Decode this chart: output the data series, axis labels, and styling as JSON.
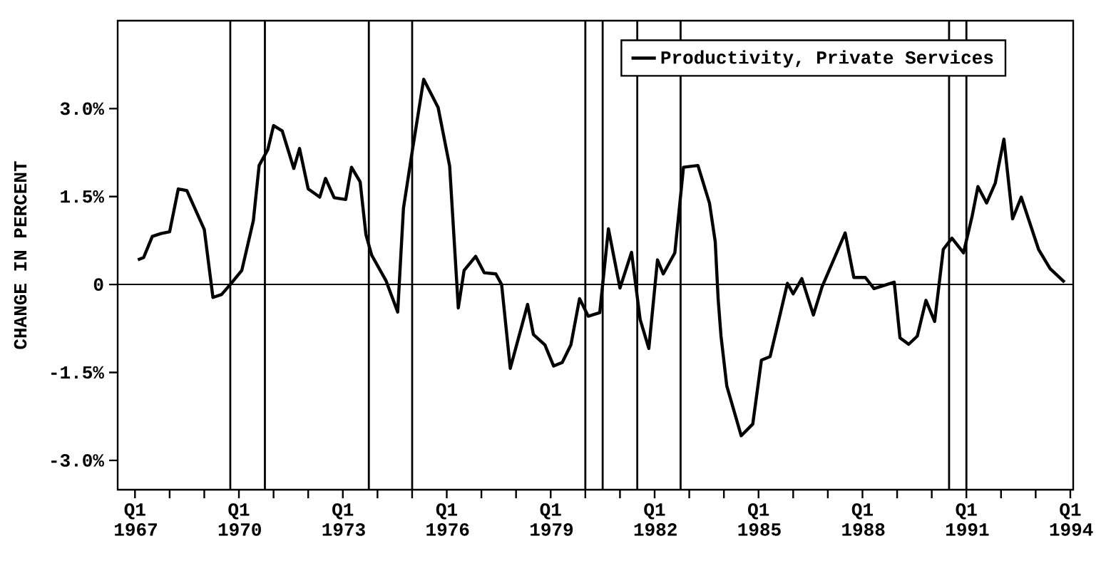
{
  "chart_data": {
    "type": "line",
    "ylabel": "CHANGE IN PERCENT",
    "x": [
      "1967-02",
      "1967-04",
      "1967-07",
      "1967-10",
      "1968-01",
      "1968-04",
      "1968-07",
      "1969-01",
      "1969-04",
      "1969-07",
      "1969-10",
      "1970-02",
      "1970-06",
      "1970-08",
      "1970-11",
      "1971-01",
      "1971-04",
      "1971-08",
      "1971-10",
      "1972-01",
      "1972-05",
      "1972-07",
      "1972-10",
      "1973-02",
      "1973-04",
      "1973-07",
      "1973-09",
      "1973-11",
      "1974-04",
      "1974-08",
      "1974-10",
      "1975-01",
      "1975-05",
      "1975-10",
      "1976-02",
      "1976-05",
      "1976-07",
      "1976-11",
      "1977-02",
      "1977-06",
      "1977-08",
      "1977-11",
      "1978-05",
      "1978-07",
      "1978-11",
      "1979-02",
      "1979-05",
      "1979-08",
      "1979-11",
      "1980-02",
      "1980-06",
      "1980-09",
      "1981-01",
      "1981-05",
      "1981-08",
      "1981-11",
      "1982-02",
      "1982-04",
      "1982-08",
      "1982-11",
      "1983-04",
      "1983-08",
      "1983-10",
      "1983-11",
      "1983-12",
      "1984-02",
      "1984-07",
      "1984-11",
      "1985-02",
      "1985-05",
      "1985-09",
      "1985-11",
      "1986-01",
      "1986-04",
      "1986-08",
      "1986-11",
      "1987-07",
      "1987-10",
      "1988-02",
      "1988-05",
      "1988-12",
      "1989-02",
      "1989-05",
      "1989-08",
      "1989-11",
      "1990-02",
      "1990-05",
      "1990-08",
      "1990-12",
      "1991-03",
      "1991-05",
      "1991-08",
      "1991-11",
      "1992-02",
      "1992-05",
      "1992-08",
      "1993-02",
      "1993-06",
      "1993-11"
    ],
    "series": [
      {
        "name": "Productivity, Private Services",
        "color": "#000000",
        "values": [
          0.42,
          0.46,
          0.82,
          0.87,
          0.9,
          1.63,
          1.6,
          0.94,
          -0.22,
          -0.17,
          0.0,
          0.24,
          1.09,
          2.03,
          2.3,
          2.71,
          2.62,
          1.98,
          2.32,
          1.63,
          1.49,
          1.81,
          1.48,
          1.45,
          2.0,
          1.75,
          0.85,
          0.5,
          0.06,
          -0.47,
          1.3,
          2.26,
          3.5,
          3.02,
          2.02,
          -0.4,
          0.24,
          0.48,
          0.2,
          0.18,
          0.0,
          -1.43,
          -0.34,
          -0.85,
          -1.03,
          -1.39,
          -1.33,
          -1.03,
          -0.24,
          -0.54,
          -0.48,
          0.95,
          -0.06,
          0.55,
          -0.6,
          -1.09,
          0.42,
          0.18,
          0.54,
          2.0,
          2.03,
          1.39,
          0.73,
          -0.24,
          -0.88,
          -1.73,
          -2.58,
          -2.38,
          -1.29,
          -1.23,
          -0.4,
          0.02,
          -0.16,
          0.1,
          -0.52,
          -0.04,
          0.88,
          0.12,
          0.12,
          -0.07,
          0.04,
          -0.91,
          -1.02,
          -0.88,
          -0.27,
          -0.63,
          0.6,
          0.79,
          0.54,
          1.17,
          1.67,
          1.39,
          1.73,
          2.48,
          1.12,
          1.49,
          0.6,
          0.27,
          0.04
        ]
      }
    ],
    "xlim": [
      "1966-07",
      "1994-02"
    ],
    "ylim": [
      -3.5,
      4.5
    ],
    "xticks": [
      {
        "value": "1967-01",
        "label": "Q1 1967"
      },
      {
        "value": "1968-01",
        "label": null
      },
      {
        "value": "1969-01",
        "label": null
      },
      {
        "value": "1970-01",
        "label": "Q1 1970"
      },
      {
        "value": "1971-01",
        "label": null
      },
      {
        "value": "1972-01",
        "label": null
      },
      {
        "value": "1973-01",
        "label": "Q1 1973"
      },
      {
        "value": "1974-01",
        "label": null
      },
      {
        "value": "1975-01",
        "label": null
      },
      {
        "value": "1976-01",
        "label": "Q1 1976"
      },
      {
        "value": "1977-01",
        "label": null
      },
      {
        "value": "1978-01",
        "label": null
      },
      {
        "value": "1979-01",
        "label": "Q1 1979"
      },
      {
        "value": "1980-01",
        "label": null
      },
      {
        "value": "1981-01",
        "label": null
      },
      {
        "value": "1982-01",
        "label": "Q1 1982"
      },
      {
        "value": "1983-01",
        "label": null
      },
      {
        "value": "1984-01",
        "label": null
      },
      {
        "value": "1985-01",
        "label": "Q1 1985"
      },
      {
        "value": "1986-01",
        "label": null
      },
      {
        "value": "1987-01",
        "label": null
      },
      {
        "value": "1988-01",
        "label": "Q1 1988"
      },
      {
        "value": "1989-01",
        "label": null
      },
      {
        "value": "1990-01",
        "label": null
      },
      {
        "value": "1991-01",
        "label": "Q1 1991"
      },
      {
        "value": "1992-01",
        "label": null
      },
      {
        "value": "1993-01",
        "label": null
      },
      {
        "value": "1994-01",
        "label": "Q1 1994"
      }
    ],
    "yticks": [
      {
        "value": -3,
        "label": "-3.0%"
      },
      {
        "value": -1.5,
        "label": "-1.5%"
      },
      {
        "value": 0,
        "label": "0"
      },
      {
        "value": 1.5,
        "label": "1.5%"
      },
      {
        "value": 3,
        "label": "3.0%"
      }
    ],
    "ref_lines": [
      {
        "axis": "y",
        "value": 0
      },
      {
        "axis": "x",
        "value": "1969-10"
      },
      {
        "axis": "x",
        "value": "1970-10"
      },
      {
        "axis": "x",
        "value": "1973-10"
      },
      {
        "axis": "x",
        "value": "1975-01"
      },
      {
        "axis": "x",
        "value": "1980-01"
      },
      {
        "axis": "x",
        "value": "1980-07"
      },
      {
        "axis": "x",
        "value": "1981-07"
      },
      {
        "axis": "x",
        "value": "1982-10"
      },
      {
        "axis": "x",
        "value": "1990-07"
      },
      {
        "axis": "x",
        "value": "1991-01"
      }
    ],
    "legend": "top right",
    "grid": false,
    "marker": "none",
    "line_style": "solid"
  }
}
